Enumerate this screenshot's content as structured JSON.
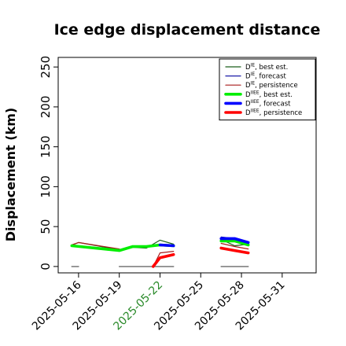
{
  "chart_data": {
    "type": "line",
    "title": "Ice edge displacement distance",
    "ylabel": "Displacement (km)",
    "xlabel": "",
    "x_ticks": [
      "2025-05-16",
      "2025-05-19",
      "2025-05-22",
      "2025-05-25",
      "2025-05-28",
      "2025-05-31"
    ],
    "x_highlight_tick": "2025-05-22",
    "x_highlight_color": "#2a8a2a",
    "xlim": [
      "2025-05-14T12:00",
      "2025-06-02T12:00"
    ],
    "y_ticks": [
      0,
      50,
      100,
      150,
      200,
      250
    ],
    "ylim": [
      -8,
      262
    ],
    "grid": false,
    "legend_position": "top-right",
    "legend": [
      {
        "base": "D",
        "sup": "IE",
        "text": ", best est.",
        "color": "#1a5e1a",
        "width": "thin"
      },
      {
        "base": "D",
        "sup": "IE",
        "text": ", forecast",
        "color": "#1c1ca8",
        "width": "thin"
      },
      {
        "base": "D",
        "sup": "IE",
        "text": ", persistence",
        "color": "#a81c1c",
        "width": "thin"
      },
      {
        "base": "D",
        "sup": "IIEE",
        "text": ", best est.",
        "color": "#00ee00",
        "width": "thick"
      },
      {
        "base": "D",
        "sup": "IIEE",
        "text": ", forecast",
        "color": "#0000ff",
        "width": "thick"
      },
      {
        "base": "D",
        "sup": "IIEE",
        "text": ", persistence",
        "color": "#ff0000",
        "width": "thick"
      }
    ],
    "series": [
      {
        "id": "ie_best",
        "color": "#1a5e1a",
        "width": "thin",
        "segments": [
          [
            [
              "2025-05-15T12:00",
              27
            ],
            [
              "2025-05-16T00:00",
              30
            ],
            [
              "2025-05-19T00:00",
              21
            ],
            [
              "2025-05-20T00:00",
              24
            ],
            [
              "2025-05-21T00:00",
              23
            ],
            [
              "2025-05-22T00:00",
              33
            ],
            [
              "2025-05-23T00:00",
              28
            ]
          ],
          [
            [
              "2025-05-26T12:00",
              34
            ],
            [
              "2025-05-27T12:00",
              26
            ],
            [
              "2025-05-28T12:00",
              28
            ]
          ]
        ]
      },
      {
        "id": "ie_forecast",
        "color": "#1c1ca8",
        "width": "thin",
        "segments": [
          [
            [
              "2025-05-22T00:00",
              26
            ],
            [
              "2025-05-23T00:00",
              27
            ]
          ],
          [
            [
              "2025-05-26T12:00",
              37
            ],
            [
              "2025-05-27T12:00",
              35
            ],
            [
              "2025-05-28T12:00",
              31
            ]
          ]
        ]
      },
      {
        "id": "ie_persistence",
        "color": "#a81c1c",
        "width": "thin",
        "segments": [
          [
            [
              "2025-05-15T12:00",
              27
            ],
            [
              "2025-05-16T00:00",
              30
            ],
            [
              "2025-05-19T00:00",
              22
            ]
          ],
          [
            [
              "2025-05-21T12:00",
              0
            ],
            [
              "2025-05-22T00:00",
              17
            ],
            [
              "2025-05-23T00:00",
              19
            ]
          ],
          [
            [
              "2025-05-26T12:00",
              29
            ],
            [
              "2025-05-27T12:00",
              25
            ],
            [
              "2025-05-28T12:00",
              22
            ]
          ]
        ]
      },
      {
        "id": "iiee_best",
        "color": "#00ee00",
        "width": "thick",
        "segments": [
          [
            [
              "2025-05-15T12:00",
              26
            ],
            [
              "2025-05-19T00:00",
              20
            ],
            [
              "2025-05-20T00:00",
              25
            ],
            [
              "2025-05-21T00:00",
              25
            ],
            [
              "2025-05-22T00:00",
              27
            ],
            [
              "2025-05-23T00:00",
              26
            ]
          ],
          [
            [
              "2025-05-26T12:00",
              32
            ],
            [
              "2025-05-27T12:00",
              32
            ],
            [
              "2025-05-28T12:00",
              27
            ]
          ]
        ]
      },
      {
        "id": "iiee_forecast",
        "color": "#0000ff",
        "width": "thick",
        "segments": [
          [
            [
              "2025-05-22T00:00",
              27
            ],
            [
              "2025-05-23T00:00",
              26
            ]
          ],
          [
            [
              "2025-05-26T12:00",
              35
            ],
            [
              "2025-05-27T12:00",
              35
            ],
            [
              "2025-05-28T12:00",
              30
            ]
          ]
        ]
      },
      {
        "id": "iiee_persistence",
        "color": "#ff0000",
        "width": "thick",
        "segments": [
          [
            [
              "2025-05-21T12:00",
              0
            ],
            [
              "2025-05-22T00:00",
              11
            ],
            [
              "2025-05-23T00:00",
              15
            ]
          ],
          [
            [
              "2025-05-26T12:00",
              23
            ],
            [
              "2025-05-27T12:00",
              20
            ],
            [
              "2025-05-28T12:00",
              17
            ]
          ]
        ]
      },
      {
        "id": "baseline",
        "color": "#808080",
        "width": "medium",
        "segments": [
          [
            [
              "2025-05-15T12:00",
              0
            ],
            [
              "2025-05-16T00:00",
              0
            ]
          ],
          [
            [
              "2025-05-19T00:00",
              0
            ],
            [
              "2025-05-23T00:00",
              0
            ]
          ],
          [
            [
              "2025-05-26T12:00",
              0
            ],
            [
              "2025-05-28T12:00",
              0
            ]
          ]
        ]
      }
    ]
  }
}
